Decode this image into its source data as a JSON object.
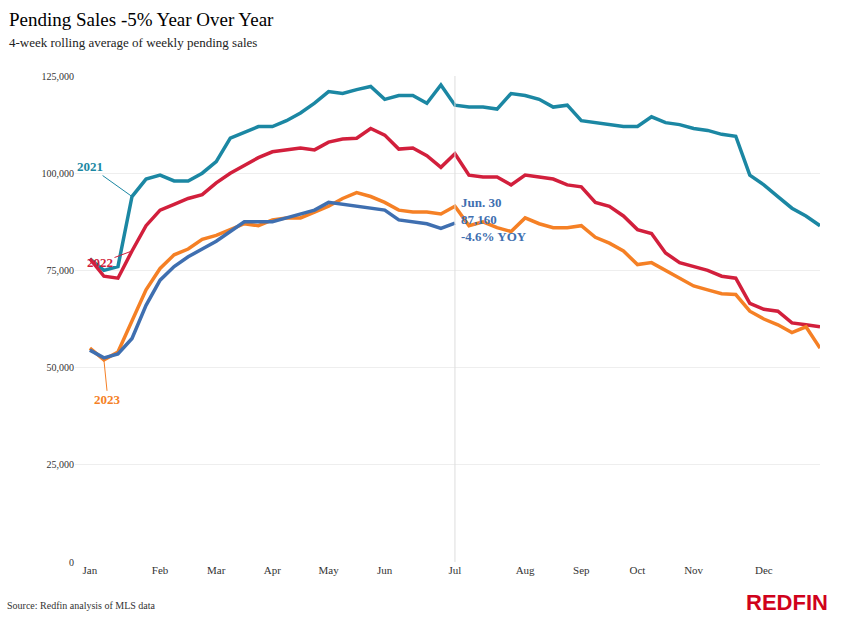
{
  "chart_data": {
    "type": "line",
    "title": "Pending Sales -5% Year Over Year",
    "subtitle": "4-week rolling average of weekly pending sales",
    "source": "Source: Redfin analysis of MLS data",
    "logo": "REDFIN",
    "grid": true,
    "categories": [
      "Jan",
      null,
      null,
      null,
      null,
      "Feb",
      null,
      null,
      null,
      "Mar",
      null,
      null,
      null,
      "Apr",
      null,
      null,
      null,
      "May",
      null,
      null,
      null,
      "Jun",
      null,
      null,
      null,
      null,
      "Jul",
      null,
      null,
      null,
      null,
      "Aug",
      null,
      null,
      null,
      "Sep",
      null,
      null,
      null,
      "Oct",
      null,
      null,
      null,
      "Nov",
      null,
      null,
      null,
      null,
      "Dec",
      null,
      null,
      null,
      null
    ],
    "ylim": [
      0,
      125000
    ],
    "yticks": [
      0,
      {
        "value": 25000,
        "label": "25,000"
      },
      {
        "value": 50000,
        "label": "50,000"
      },
      {
        "value": 75000,
        "label": "75,000"
      },
      {
        "value": 100000,
        "label": "100,000"
      },
      {
        "value": 125000,
        "label": "125,000"
      }
    ],
    "series": [
      {
        "name": "2021",
        "color": "#1b87a3",
        "values": [
          78000,
          75000,
          76000,
          94000,
          98500,
          99500,
          98000,
          98000,
          100000,
          103000,
          109000,
          110500,
          112000,
          112000,
          113500,
          115500,
          118000,
          121000,
          120500,
          121500,
          122300,
          119000,
          120000,
          120000,
          118000,
          122700,
          117500,
          117000,
          117000,
          116500,
          120500,
          120000,
          119000,
          117000,
          117500,
          113500,
          113000,
          112500,
          112000,
          112000,
          114500,
          113000,
          112500,
          111500,
          111000,
          110000,
          109500,
          99500,
          97000,
          94000,
          91000,
          89000,
          86500
        ]
      },
      {
        "name": "2022",
        "color": "#d21f3c",
        "values": [
          78000,
          73500,
          73000,
          80000,
          86500,
          90500,
          92000,
          93500,
          94500,
          97500,
          100000,
          102000,
          104000,
          105500,
          106000,
          106500,
          106000,
          108000,
          108800,
          109000,
          111500,
          109800,
          106200,
          106500,
          104500,
          101500,
          105000,
          99500,
          99000,
          99000,
          97000,
          99500,
          99000,
          98500,
          97000,
          96500,
          92500,
          91500,
          89000,
          85500,
          84500,
          79500,
          77000,
          76000,
          75000,
          73500,
          73000,
          66500,
          65000,
          64500,
          61500,
          61000,
          60500
        ]
      },
      {
        "name": "2023",
        "color": "#f58025",
        "values": [
          55000,
          52000,
          54000,
          62000,
          70000,
          75500,
          79000,
          80500,
          83000,
          84000,
          85500,
          87000,
          86500,
          88000,
          88500,
          88500,
          90000,
          91500,
          93500,
          95000,
          94000,
          92500,
          90500,
          90000,
          90000,
          89500,
          91500,
          86500,
          87500,
          86000,
          85000,
          88500,
          87000,
          86000,
          86000,
          86500,
          83500,
          82000,
          80000,
          76500,
          77000,
          75000,
          73000,
          71000,
          70000,
          69000,
          68800,
          64500,
          62500,
          61000,
          59000,
          60500,
          55000
        ]
      },
      {
        "color": "#3f6fb0",
        "annotation": [
          "Jun. 30",
          "87,160",
          "-4.6% YOY"
        ],
        "values": [
          54500,
          52500,
          53500,
          57500,
          66000,
          72500,
          76000,
          78500,
          80500,
          82500,
          85000,
          87500,
          87500,
          87500,
          88500,
          89500,
          90500,
          92500,
          92000,
          91500,
          91000,
          90500,
          88000,
          87500,
          87000,
          85800,
          87160,
          null,
          null,
          null,
          null,
          null,
          null,
          null,
          null,
          null,
          null,
          null,
          null,
          null,
          null,
          null,
          null,
          null,
          null,
          null,
          null,
          null,
          null,
          null,
          null,
          null,
          null
        ]
      }
    ]
  }
}
